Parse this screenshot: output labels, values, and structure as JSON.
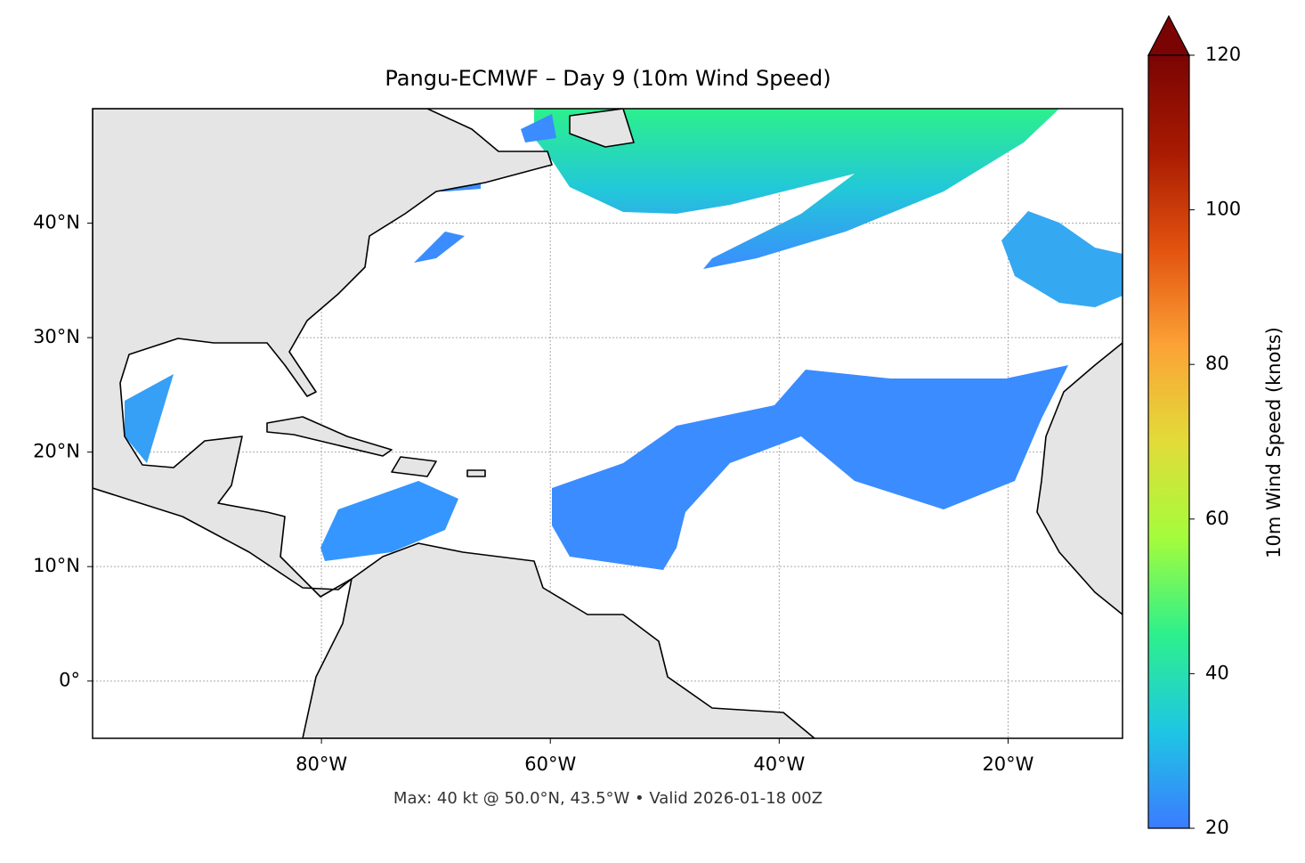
{
  "chart_data": {
    "type": "map",
    "title": "Pangu-ECMWF – Day 9 (10m Wind Speed)",
    "footer": "Max: 40 kt @ 50.0°N, 43.5°W • Valid 2026-01-18 00Z",
    "xlim": [
      -100,
      -10
    ],
    "ylim": [
      -5,
      50
    ],
    "xticks": [
      {
        "value": -80,
        "label": "80°W"
      },
      {
        "value": -60,
        "label": "60°W"
      },
      {
        "value": -40,
        "label": "40°W"
      },
      {
        "value": -20,
        "label": "20°W"
      }
    ],
    "yticks": [
      {
        "value": 0,
        "label": "0°"
      },
      {
        "value": 10,
        "label": "10°N"
      },
      {
        "value": 20,
        "label": "20°N"
      },
      {
        "value": 30,
        "label": "30°N"
      },
      {
        "value": 40,
        "label": "40°N"
      }
    ],
    "grid": true,
    "colorbar": {
      "label": "10m Wind Speed (knots)",
      "lim": [
        20,
        120
      ],
      "ticks": [
        20,
        40,
        60,
        80,
        100,
        120
      ],
      "colors": [
        "#3b7bff",
        "#1ec6e4",
        "#2cf08c",
        "#a4fc3c",
        "#e2dc38",
        "#fca236",
        "#e2520f",
        "#a81a02",
        "#7a0403"
      ]
    }
  }
}
